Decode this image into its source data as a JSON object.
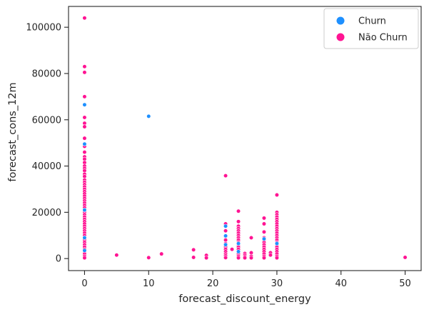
{
  "chart_data": {
    "type": "scatter",
    "title": "",
    "xlabel": "forecast_discount_energy",
    "ylabel": "forecast_cons_12m",
    "xlim": [
      -2.5,
      52.5
    ],
    "ylim": [
      -5200,
      109000
    ],
    "x_ticks": [
      0,
      10,
      20,
      30,
      40,
      50
    ],
    "y_ticks": [
      0,
      20000,
      40000,
      60000,
      80000,
      100000
    ],
    "x_tick_labels": [
      "0",
      "10",
      "20",
      "30",
      "40",
      "50"
    ],
    "y_tick_labels": [
      "0",
      "20000",
      "40000",
      "60000",
      "80000",
      "100000"
    ],
    "grid": false,
    "legend_position": "top-right",
    "colors": {
      "Churn": "#1e90ff",
      "Não Churn": "#ff1493"
    },
    "legend": [
      "Churn",
      "Não Churn"
    ],
    "series": [
      {
        "name": "Não Churn",
        "points": [
          [
            0,
            104000
          ],
          [
            0,
            83000
          ],
          [
            0,
            80500
          ],
          [
            0,
            70000
          ],
          [
            0,
            61000
          ],
          [
            0,
            58500
          ],
          [
            0,
            57000
          ],
          [
            0,
            52000
          ],
          [
            0,
            48500
          ],
          [
            0,
            46000
          ],
          [
            0,
            44000
          ],
          [
            0,
            43000
          ],
          [
            0,
            41500
          ],
          [
            0,
            40000
          ],
          [
            0,
            39000
          ],
          [
            0,
            38000
          ],
          [
            0,
            36500
          ],
          [
            0,
            35500
          ],
          [
            0,
            34000
          ],
          [
            0,
            33000
          ],
          [
            0,
            32000
          ],
          [
            0,
            31000
          ],
          [
            0,
            30000
          ],
          [
            0,
            29000
          ],
          [
            0,
            28000
          ],
          [
            0,
            27000
          ],
          [
            0,
            26000
          ],
          [
            0,
            25000
          ],
          [
            0,
            24000
          ],
          [
            0,
            23000
          ],
          [
            0,
            22000
          ],
          [
            0,
            21000
          ],
          [
            0,
            20000
          ],
          [
            0,
            19000
          ],
          [
            0,
            18000
          ],
          [
            0,
            17000
          ],
          [
            0,
            16000
          ],
          [
            0,
            15000
          ],
          [
            0,
            14000
          ],
          [
            0,
            13000
          ],
          [
            0,
            12000
          ],
          [
            0,
            11000
          ],
          [
            0,
            10000
          ],
          [
            0,
            9000
          ],
          [
            0,
            8000
          ],
          [
            0,
            7000
          ],
          [
            0,
            6000
          ],
          [
            0,
            5000
          ],
          [
            0,
            4000
          ],
          [
            0,
            3000
          ],
          [
            0,
            2000
          ],
          [
            0,
            1000
          ],
          [
            0,
            300
          ],
          [
            5,
            1500
          ],
          [
            10,
            400
          ],
          [
            12,
            2000
          ],
          [
            17,
            3800
          ],
          [
            17,
            500
          ],
          [
            19,
            1400
          ],
          [
            19,
            300
          ],
          [
            22,
            35800
          ],
          [
            22,
            15000
          ],
          [
            22,
            12000
          ],
          [
            22,
            9500
          ],
          [
            22,
            8000
          ],
          [
            22,
            6500
          ],
          [
            22,
            5000
          ],
          [
            22,
            4000
          ],
          [
            22,
            3000
          ],
          [
            22,
            2000
          ],
          [
            22,
            1200
          ],
          [
            22,
            400
          ],
          [
            23,
            4000
          ],
          [
            24,
            20500
          ],
          [
            24,
            16000
          ],
          [
            24,
            14000
          ],
          [
            24,
            13000
          ],
          [
            24,
            12000
          ],
          [
            24,
            11000
          ],
          [
            24,
            10000
          ],
          [
            24,
            9000
          ],
          [
            24,
            8000
          ],
          [
            24,
            7000
          ],
          [
            24,
            6000
          ],
          [
            24,
            5000
          ],
          [
            24,
            4000
          ],
          [
            24,
            3000
          ],
          [
            24,
            2000
          ],
          [
            24,
            1000
          ],
          [
            24,
            300
          ],
          [
            25,
            2200
          ],
          [
            25,
            1500
          ],
          [
            25,
            800
          ],
          [
            25,
            300
          ],
          [
            26,
            9000
          ],
          [
            26,
            2500
          ],
          [
            26,
            1000
          ],
          [
            26,
            300
          ],
          [
            28,
            17500
          ],
          [
            28,
            15000
          ],
          [
            28,
            11500
          ],
          [
            28,
            9000
          ],
          [
            28,
            8000
          ],
          [
            28,
            7000
          ],
          [
            28,
            6000
          ],
          [
            28,
            5000
          ],
          [
            28,
            4000
          ],
          [
            28,
            3000
          ],
          [
            28,
            2000
          ],
          [
            28,
            1000
          ],
          [
            28,
            300
          ],
          [
            29,
            2500
          ],
          [
            29,
            1500
          ],
          [
            30,
            27500
          ],
          [
            30,
            20000
          ],
          [
            30,
            19000
          ],
          [
            30,
            18000
          ],
          [
            30,
            17000
          ],
          [
            30,
            16000
          ],
          [
            30,
            15000
          ],
          [
            30,
            14000
          ],
          [
            30,
            13000
          ],
          [
            30,
            12000
          ],
          [
            30,
            11000
          ],
          [
            30,
            10000
          ],
          [
            30,
            9000
          ],
          [
            30,
            8000
          ],
          [
            30,
            7000
          ],
          [
            30,
            6000
          ],
          [
            30,
            5000
          ],
          [
            30,
            4000
          ],
          [
            30,
            3000
          ],
          [
            30,
            2000
          ],
          [
            30,
            1000
          ],
          [
            30,
            300
          ],
          [
            50,
            500
          ]
        ]
      },
      {
        "name": "Churn",
        "points": [
          [
            0,
            66500
          ],
          [
            0,
            49500
          ],
          [
            0,
            21000
          ],
          [
            0,
            9000
          ],
          [
            0,
            3500
          ],
          [
            10,
            61500
          ],
          [
            22,
            14000
          ],
          [
            22,
            9800
          ],
          [
            22,
            6000
          ],
          [
            24,
            6500
          ],
          [
            24,
            3000
          ],
          [
            28,
            8500
          ],
          [
            30,
            6500
          ]
        ]
      }
    ]
  }
}
